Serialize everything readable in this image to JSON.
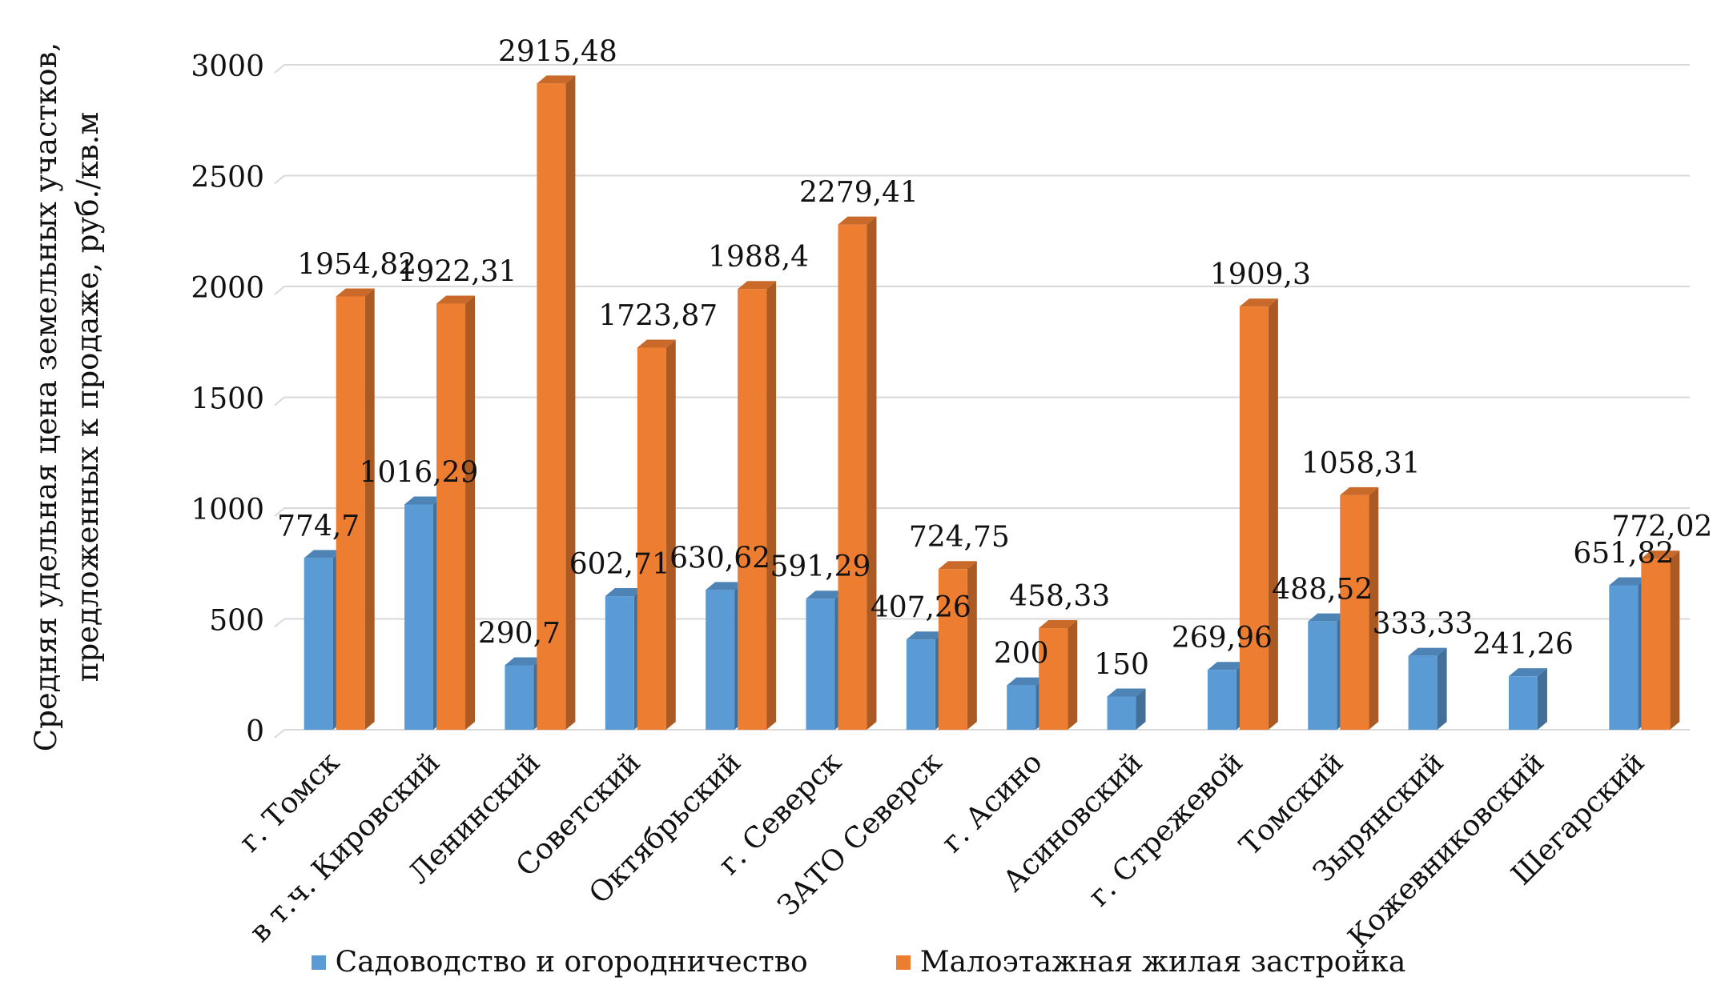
{
  "chart_data": {
    "type": "bar",
    "title": "",
    "xlabel": "",
    "ylabel_lines": [
      "Средняя удельная цена земельных участков,",
      "предложенных к продаже, руб./кв.м"
    ],
    "ylim": [
      0,
      3000
    ],
    "yticks": [
      0,
      500,
      1000,
      1500,
      2000,
      2500,
      3000
    ],
    "grid": true,
    "legend_position": "bottom",
    "categories": [
      "г. Томск",
      "в т.ч. Кировский",
      "Ленинский",
      "Советский",
      "Октябрьский",
      "г. Северск",
      "ЗАТО Северск",
      "г. Асино",
      "Асиновский",
      "г. Стрежевой",
      "Томский",
      "Зырянский",
      "Кожевниковский",
      "Шегарский"
    ],
    "series": [
      {
        "name": "Садоводство и огородничество",
        "color": "#5B9BD5",
        "values": [
          774.7,
          1016.29,
          290.7,
          602.71,
          630.62,
          591.29,
          407.26,
          200,
          150,
          269.96,
          488.52,
          333.33,
          241.26,
          651.82
        ],
        "labels": [
          "774,7",
          "1016,29",
          "290,7",
          "602,71",
          "630,62",
          "591,29",
          "407,26",
          "200",
          "150",
          "269,96",
          "488,52",
          "333,33",
          "241,26",
          "651,82"
        ]
      },
      {
        "name": "Малоэтажная жилая застройка",
        "color": "#ED7D31",
        "values": [
          1954.82,
          1922.31,
          2915.48,
          1723.87,
          1988.4,
          2279.41,
          724.75,
          458.33,
          null,
          1909.3,
          1058.31,
          null,
          null,
          772.02
        ],
        "labels": [
          "1954,82",
          "1922,31",
          "2915,48",
          "1723,87",
          "1988,4",
          "2279,41",
          "724,75",
          "458,33",
          null,
          "1909,3",
          "1058,31",
          null,
          null,
          "772,02"
        ]
      }
    ]
  }
}
